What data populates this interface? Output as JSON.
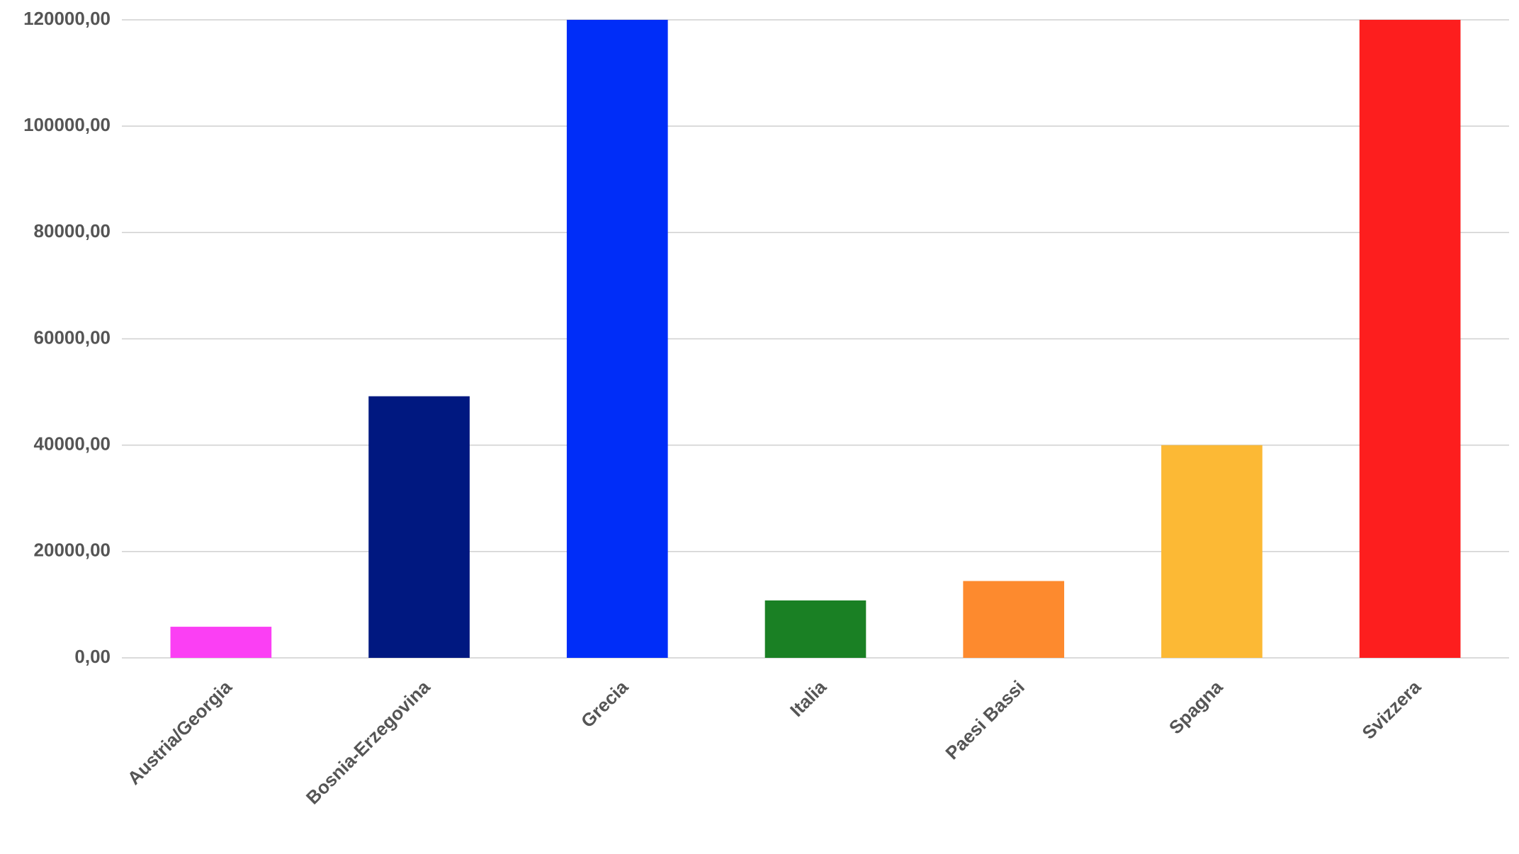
{
  "chart_data": {
    "type": "bar",
    "categories": [
      "Austria/Georgia",
      "Bosnia-Erzegovina",
      "Grecia",
      "Italia",
      "Paesi Bassi",
      "Spagna",
      "Svizzera"
    ],
    "values": [
      5850,
      49200,
      120000,
      10800,
      14450,
      40000,
      120000
    ],
    "colors": [
      "#fb3ff4",
      "#001880",
      "#002df8",
      "#1a8024",
      "#fd8a2e",
      "#fcb935",
      "#fd1e1e"
    ],
    "ylim": [
      0,
      120000
    ],
    "yticks": [
      {
        "value": 0,
        "label": "0,00"
      },
      {
        "value": 20000,
        "label": "20000,00"
      },
      {
        "value": 40000,
        "label": "40000,00"
      },
      {
        "value": 60000,
        "label": "60000,00"
      },
      {
        "value": 80000,
        "label": "80000,00"
      },
      {
        "value": 100000,
        "label": "100000,00"
      },
      {
        "value": 120000,
        "label": "120000,00"
      }
    ],
    "grid": true
  }
}
